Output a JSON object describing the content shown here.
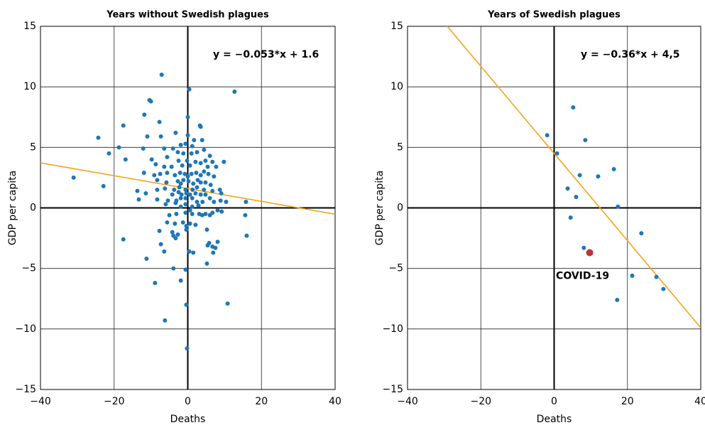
{
  "chart_data": [
    {
      "type": "scatter",
      "title": "Years without Swedish plagues",
      "xlabel": "Deaths",
      "ylabel": "GDP per capita",
      "annotation": "y = −0.053*x + 1.6",
      "fit": {
        "slope": -0.053,
        "intercept": 1.6,
        "color": "#f5a31a"
      },
      "color": "#1f77b4",
      "grid": true,
      "xlim": [
        -40,
        40
      ],
      "ylim": [
        -15,
        15
      ],
      "xticks": [
        {
          "value": -40,
          "label": "−40"
        },
        {
          "value": -20,
          "label": "−20"
        },
        0,
        20,
        40
      ],
      "yticks": [
        {
          "value": -15,
          "label": "−15"
        },
        {
          "value": -10,
          "label": "−10"
        },
        {
          "value": -5,
          "label": "−5"
        },
        0,
        5,
        10,
        15
      ],
      "x": [
        -7.1,
        0.4,
        12.7,
        -10.4,
        -10,
        -7.7,
        -11.8,
        0,
        3.5,
        3.3,
        -17.5,
        -3.3,
        -24.3,
        -11,
        -7.3,
        0,
        1.7,
        3.9,
        -18.7,
        -21.4,
        -12.1,
        -6.4,
        -4,
        -1.9,
        -0.6,
        1.2,
        -16.9,
        -9.8,
        -5.6,
        -2.7,
        -1.2,
        1,
        2.5,
        4.4,
        6,
        -8.7,
        -6.4,
        -4.4,
        -2.5,
        -1.5,
        -0.2,
        0.6,
        2.1,
        3.5,
        4.8,
        5.4,
        6.7,
        7.7,
        9.8,
        -11.9,
        -7.5,
        -5.6,
        -3.5,
        -2.1,
        -0.8,
        0,
        1,
        2.3,
        3.5,
        4.4,
        5.6,
        7.1,
        -31,
        -9.1,
        -8.3,
        -5.8,
        -2.7,
        -1.9,
        -1.2,
        0.2,
        1.5,
        2.7,
        3.5,
        4.8,
        6.2,
        -22.9,
        -6.2,
        -3.7,
        -2.3,
        -0.6,
        1.3,
        2.5,
        4.4,
        6.7,
        -13.7,
        -11.4,
        -8.3,
        8.7,
        9.1,
        -4.2,
        -2.5,
        -1.7,
        -0.4,
        0.6,
        2.1,
        3.5,
        4.8,
        -13.3,
        -8.3,
        -5.4,
        -3.1,
        -1.9,
        -0.6,
        1.2,
        2.5,
        4,
        6,
        7.1,
        8.9,
        10.4,
        15.8,
        -6,
        -3.3,
        -1.9,
        -0.6,
        1.2,
        2.9,
        -5,
        -3.1,
        -0.6,
        3.1,
        4.8,
        8.1,
        9.2,
        0.6,
        1.2,
        3.9,
        6,
        6.7,
        15.6,
        -5.6,
        -3.5,
        -1.3,
        -0.4,
        0.6,
        2.1,
        -7.7,
        -4.2,
        -0.4,
        5.2,
        -3.9,
        -3.3,
        -2.7,
        16,
        -17.5,
        5.8,
        8.1,
        -7.3,
        6.7,
        5.4,
        -6.4,
        0.4,
        1.5,
        7.5,
        6.9,
        -11.2,
        5.2,
        -3.9,
        -0.6,
        -8.9,
        -1.9,
        10.8,
        -0.4,
        -6.2,
        -0.2
      ],
      "y": [
        11,
        9.8,
        9.6,
        8.9,
        8.8,
        7.1,
        7.7,
        7.5,
        6.7,
        6.8,
        6.8,
        6.2,
        5.8,
        5.9,
        5.9,
        6,
        5.6,
        5.6,
        5,
        4.5,
        4.9,
        4.9,
        4.9,
        5.2,
        5.3,
        5.1,
        4,
        4,
        4.2,
        4.6,
        4.5,
        4.5,
        4.6,
        4.8,
        4.3,
        3.6,
        3.4,
        3.4,
        3.9,
        3.5,
        3.9,
        3.5,
        3.8,
        3.7,
        3.9,
        3.4,
        3.8,
        3.4,
        3.8,
        2.9,
        2.8,
        2.9,
        2.7,
        2.9,
        2.8,
        2.6,
        2.8,
        2.9,
        2.7,
        3,
        2.8,
        2.6,
        2.5,
        2.7,
        2.3,
        2.1,
        2.2,
        2,
        2.3,
        2.2,
        2,
        2.3,
        2.1,
        2.1,
        1.9,
        1.8,
        1.6,
        1.5,
        1.7,
        1.5,
        1.5,
        1.7,
        1.5,
        1.4,
        1.4,
        1.2,
        1.5,
        1.5,
        1.2,
        1.1,
        1.3,
        1.1,
        1.2,
        1.1,
        1.2,
        1.1,
        1.1,
        0.7,
        0.7,
        0.6,
        0.6,
        0.8,
        0.8,
        0.8,
        0.5,
        0.5,
        0.8,
        0.5,
        0.6,
        0.5,
        0.5,
        0.3,
        0.4,
        0.1,
        0.3,
        0.1,
        0.2,
        -0.6,
        -0.5,
        -0.4,
        -0.5,
        -0.5,
        -0.2,
        -0.3,
        -0.2,
        -0.5,
        -0.6,
        -0.6,
        -0.4,
        -0.6,
        -1.2,
        -1.3,
        -1.2,
        -1.5,
        -1.3,
        -1.4,
        -1.9,
        -2,
        -1.8,
        -1.8,
        -2.3,
        -2.5,
        -2.2,
        -2.3,
        -2.6,
        -2.9,
        -2.8,
        -3,
        -3.2,
        -3.1,
        -3.6,
        -3.6,
        -3.7,
        -3.3,
        -3.7,
        -4.2,
        -4.6,
        -5,
        -5.1,
        -6.2,
        -6,
        -7.9,
        -8,
        -9.3,
        -11.6
      ]
    },
    {
      "type": "scatter",
      "title": "Years of Swedish plagues",
      "xlabel": "Deaths",
      "ylabel": "GDP per capita",
      "annotation": "y = −0.36*x + 4,5",
      "fit": {
        "slope": -0.36,
        "intercept": 4.5,
        "color": "#f5a31a"
      },
      "color": "#1f77b4",
      "grid": true,
      "xlim": [
        -40,
        40
      ],
      "ylim": [
        -15,
        15
      ],
      "xticks": [
        {
          "value": -40,
          "label": "−40"
        },
        {
          "value": -20,
          "label": "−20"
        },
        0,
        20,
        40
      ],
      "yticks": [
        {
          "value": -15,
          "label": "−15"
        },
        {
          "value": -10,
          "label": "−10"
        },
        {
          "value": -5,
          "label": "−5"
        },
        0,
        5,
        10,
        15
      ],
      "x": [
        -1.9,
        0.8,
        5.2,
        8.5,
        7,
        12,
        16.3,
        3.7,
        6,
        17.4,
        4.5,
        23.8,
        8.1,
        21.3,
        27.9,
        29.8,
        17.2
      ],
      "y": [
        6,
        4.5,
        8.3,
        5.6,
        2.7,
        2.6,
        3.2,
        1.6,
        0.9,
        0.1,
        -0.8,
        -2.1,
        -3.3,
        -5.6,
        -5.7,
        -6.7,
        -7.6
      ],
      "highlight": {
        "x": 9.7,
        "y": -3.7,
        "color": "#c0313b",
        "label": "COVID-19"
      }
    }
  ]
}
